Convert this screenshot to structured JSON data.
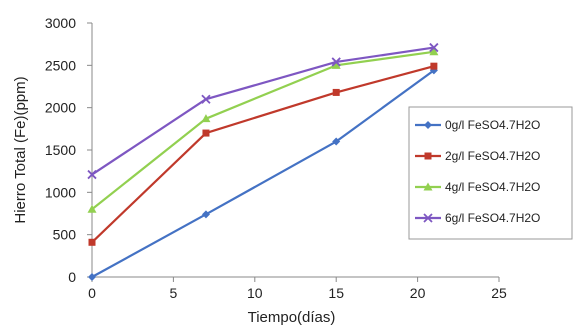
{
  "chart_data": {
    "type": "line",
    "title": "",
    "xlabel": "Tiempo(días)",
    "ylabel": "Hierro Total (Fe)(ppm)",
    "xlim": [
      0,
      25
    ],
    "ylim": [
      0,
      3000
    ],
    "x_ticks": [
      "0",
      "5",
      "10",
      "15",
      "20",
      "25"
    ],
    "y_ticks": [
      "0",
      "500",
      "1000",
      "1500",
      "2000",
      "2500",
      "3000"
    ],
    "grid": false,
    "legend": "right",
    "series": [
      {
        "name": "0g/l FeSO4.7H2O",
        "color": "#4472C4",
        "marker": "diamond",
        "points": [
          [
            0,
            0
          ],
          [
            7,
            740
          ],
          [
            15,
            1600
          ],
          [
            21,
            2440
          ]
        ]
      },
      {
        "name": "2g/l FeSO4.7H2O",
        "color": "#C0392B",
        "marker": "square",
        "points": [
          [
            0,
            410
          ],
          [
            7,
            1700
          ],
          [
            15,
            2180
          ],
          [
            21,
            2490
          ]
        ]
      },
      {
        "name": "4g/l FeSO4.7H2O",
        "color": "#92D050",
        "marker": "triangle",
        "points": [
          [
            0,
            800
          ],
          [
            7,
            1870
          ],
          [
            15,
            2500
          ],
          [
            21,
            2660
          ]
        ]
      },
      {
        "name": "6g/l FeSO4.7H2O",
        "color": "#7E57C2",
        "marker": "cross",
        "points": [
          [
            0,
            1210
          ],
          [
            7,
            2100
          ],
          [
            15,
            2540
          ],
          [
            21,
            2710
          ]
        ]
      }
    ]
  }
}
